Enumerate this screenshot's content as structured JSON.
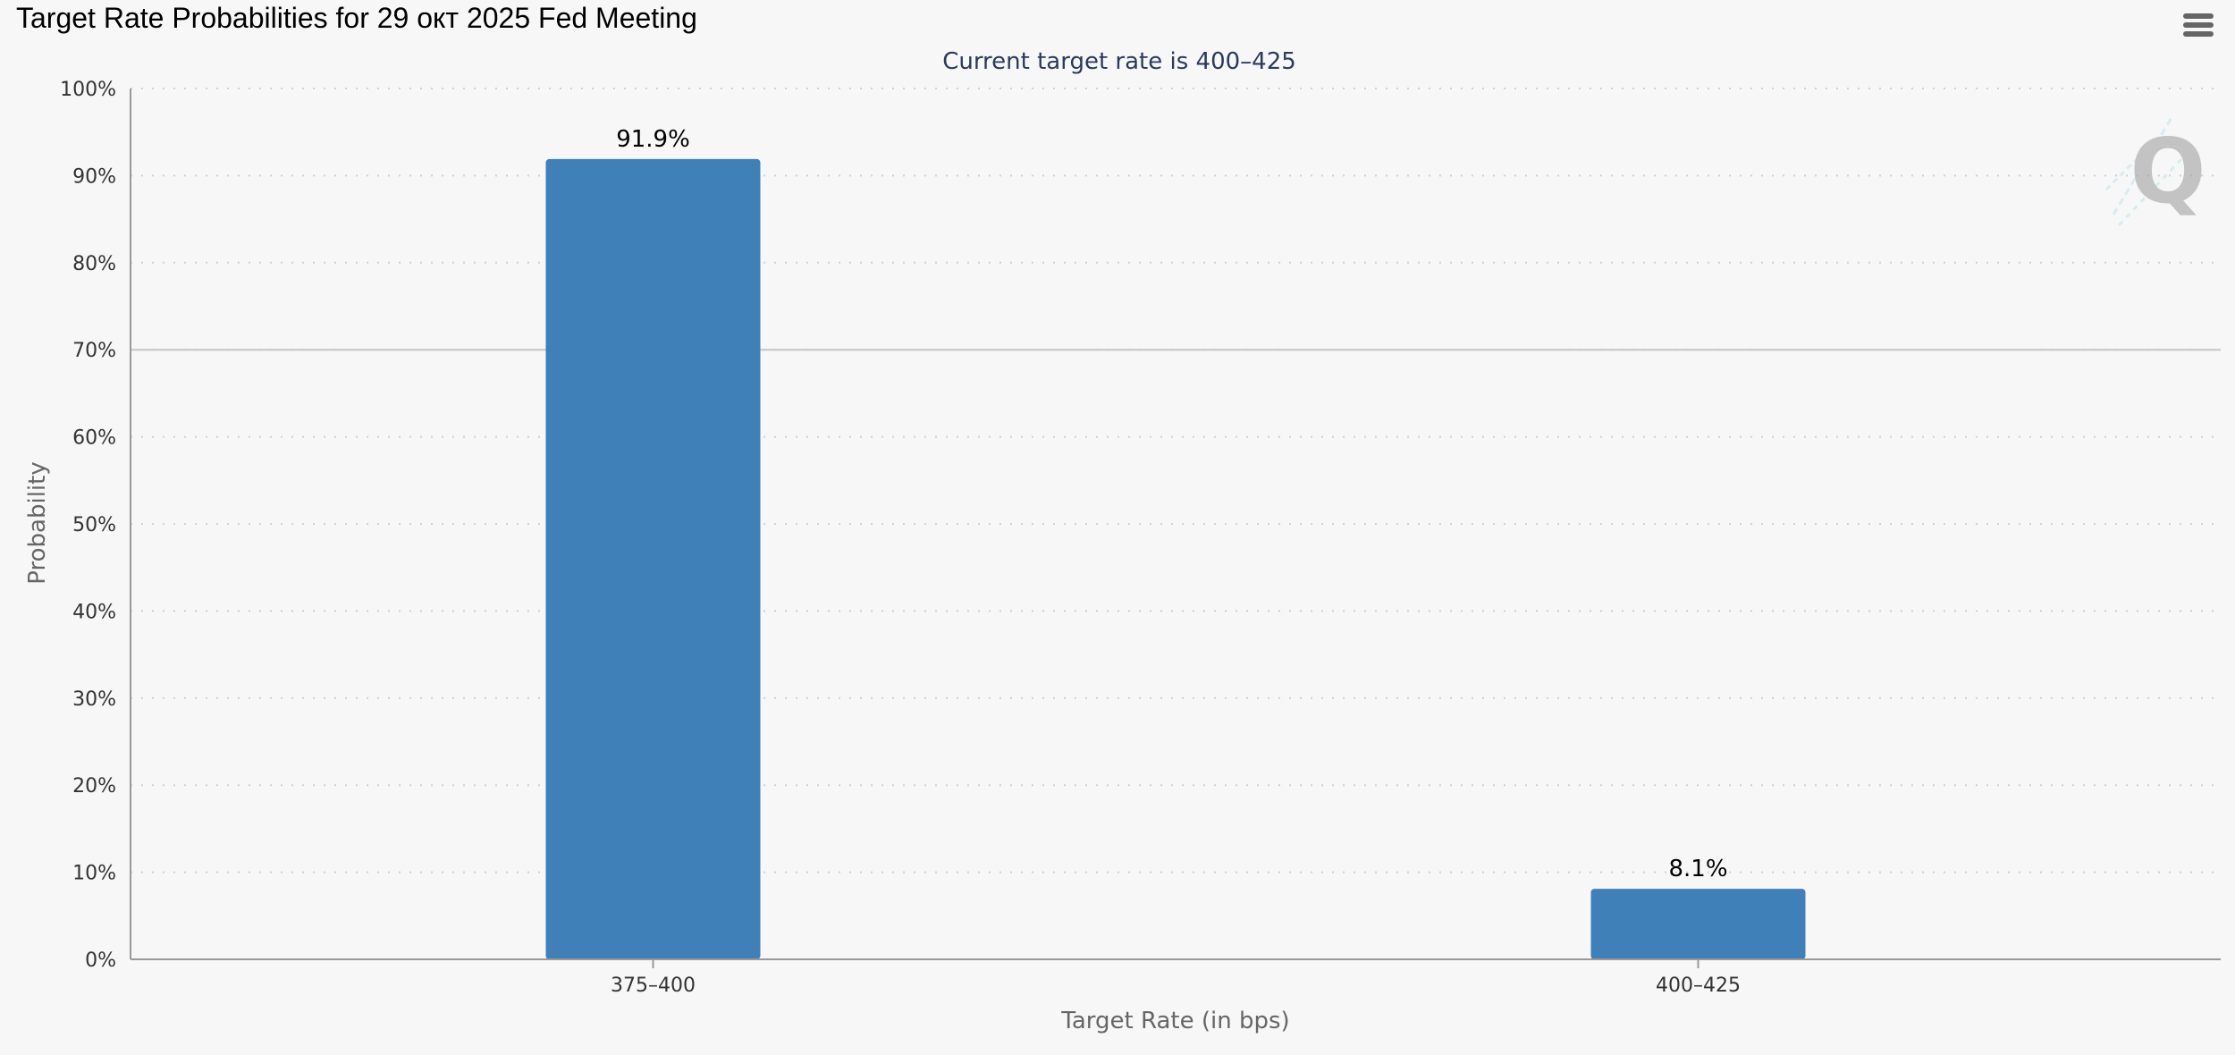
{
  "page": {
    "title": "Target Rate Probabilities for 29 окт 2025 Fed Meeting"
  },
  "toolbar": {
    "menu_icon": "hamburger-menu-icon"
  },
  "watermark": {
    "letter": "Q"
  },
  "colors": {
    "background": "#f7f7f7",
    "bar": "#4080b8",
    "subtitle": "#2b3a5e",
    "axis_text": "#333333",
    "axis_title": "#666666",
    "grid": "#d0d0d0",
    "axis_line": "#999999"
  },
  "chart_data": {
    "type": "bar",
    "title": "Target Rate Probabilities for 29 окт 2025 Fed Meeting",
    "subtitle": "Current target rate is 400–425",
    "xlabel": "Target Rate (in bps)",
    "ylabel": "Probability",
    "categories": [
      "375–400",
      "400–425"
    ],
    "values": [
      91.9,
      8.1
    ],
    "data_labels": [
      "91.9%",
      "8.1%"
    ],
    "ylim": [
      0,
      100
    ],
    "yticks": [
      0,
      10,
      20,
      30,
      40,
      50,
      60,
      70,
      80,
      90,
      100
    ],
    "ytick_labels": [
      "0%",
      "10%",
      "20%",
      "30%",
      "40%",
      "50%",
      "60%",
      "70%",
      "80%",
      "90%",
      "100%"
    ],
    "reference_line": 70,
    "grid": true,
    "legend": "none"
  }
}
